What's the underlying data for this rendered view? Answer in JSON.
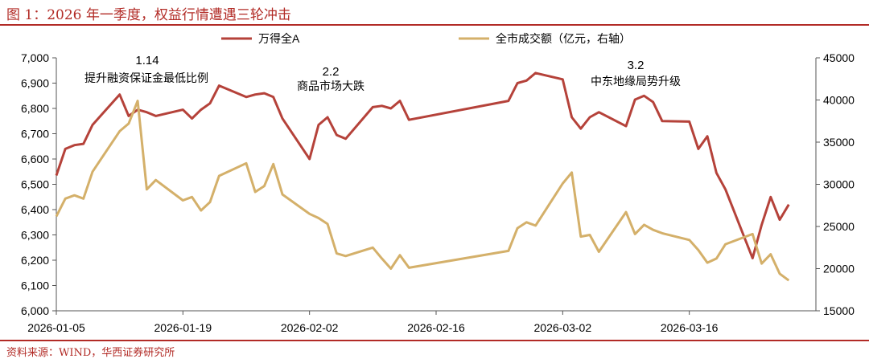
{
  "figure": {
    "title": "图 1：2026 年一季度，权益行情遭遇三轮冲击",
    "source": "资料来源：WIND，华西证券研究所"
  },
  "colors": {
    "primary": "#b5423a",
    "secondary": "#d4b06a",
    "accent": "#b22b26"
  },
  "chart_data": {
    "type": "line",
    "x_axis": {
      "ticks": [
        "2026-01-05",
        "2026-01-19",
        "2026-02-02",
        "2026-02-16",
        "2026-03-02",
        "2026-03-16"
      ],
      "range": [
        "2026-01-05",
        "2026-03-30"
      ]
    },
    "y_left": {
      "ticks": [
        "6,000",
        "6,100",
        "6,200",
        "6,300",
        "6,400",
        "6,500",
        "6,600",
        "6,700",
        "6,800",
        "6,900",
        "7,000"
      ],
      "range": [
        6000,
        7000
      ]
    },
    "y_right": {
      "ticks": [
        "15000",
        "20000",
        "25000",
        "30000",
        "35000",
        "40000",
        "45000"
      ],
      "range": [
        15000,
        45000
      ]
    },
    "legend": {
      "placement": "top",
      "entries": [
        "万得全A",
        "全市成交额（亿元，右轴）"
      ]
    },
    "series": [
      {
        "name": "万得全A",
        "axis": "left",
        "points": [
          [
            "2026-01-05",
            6535
          ],
          [
            "2026-01-06",
            6640
          ],
          [
            "2026-01-07",
            6655
          ],
          [
            "2026-01-08",
            6660
          ],
          [
            "2026-01-09",
            6735
          ],
          [
            "2026-01-12",
            6855
          ],
          [
            "2026-01-13",
            6770
          ],
          [
            "2026-01-14",
            6795
          ],
          [
            "2026-01-15",
            6785
          ],
          [
            "2026-01-16",
            6770
          ],
          [
            "2026-01-19",
            6795
          ],
          [
            "2026-01-20",
            6760
          ],
          [
            "2026-01-21",
            6795
          ],
          [
            "2026-01-22",
            6820
          ],
          [
            "2026-01-23",
            6890
          ],
          [
            "2026-01-26",
            6845
          ],
          [
            "2026-01-27",
            6855
          ],
          [
            "2026-01-28",
            6860
          ],
          [
            "2026-01-29",
            6845
          ],
          [
            "2026-01-30",
            6760
          ],
          [
            "2026-02-02",
            6600
          ],
          [
            "2026-02-03",
            6735
          ],
          [
            "2026-02-04",
            6765
          ],
          [
            "2026-02-05",
            6695
          ],
          [
            "2026-02-06",
            6680
          ],
          [
            "2026-02-09",
            6805
          ],
          [
            "2026-02-10",
            6810
          ],
          [
            "2026-02-11",
            6800
          ],
          [
            "2026-02-12",
            6830
          ],
          [
            "2026-02-13",
            6755
          ],
          [
            "2026-02-24",
            6830
          ],
          [
            "2026-02-25",
            6900
          ],
          [
            "2026-02-26",
            6910
          ],
          [
            "2026-02-27",
            6940
          ],
          [
            "2026-03-02",
            6915
          ],
          [
            "2026-03-03",
            6765
          ],
          [
            "2026-03-04",
            6720
          ],
          [
            "2026-03-05",
            6765
          ],
          [
            "2026-03-06",
            6785
          ],
          [
            "2026-03-09",
            6730
          ],
          [
            "2026-03-10",
            6835
          ],
          [
            "2026-03-11",
            6850
          ],
          [
            "2026-03-12",
            6825
          ],
          [
            "2026-03-13",
            6750
          ],
          [
            "2026-03-16",
            6748
          ],
          [
            "2026-03-17",
            6640
          ],
          [
            "2026-03-18",
            6690
          ],
          [
            "2026-03-19",
            6545
          ],
          [
            "2026-03-20",
            6480
          ],
          [
            "2026-03-23",
            6208
          ],
          [
            "2026-03-24",
            6340
          ],
          [
            "2026-03-25",
            6450
          ],
          [
            "2026-03-26",
            6360
          ],
          [
            "2026-03-27",
            6420
          ]
        ]
      },
      {
        "name": "全市成交额（亿元，右轴）",
        "axis": "right",
        "points": [
          [
            "2026-01-05",
            26200
          ],
          [
            "2026-01-06",
            28300
          ],
          [
            "2026-01-07",
            28700
          ],
          [
            "2026-01-08",
            28300
          ],
          [
            "2026-01-09",
            31500
          ],
          [
            "2026-01-12",
            36300
          ],
          [
            "2026-01-13",
            37200
          ],
          [
            "2026-01-14",
            39900
          ],
          [
            "2026-01-15",
            29400
          ],
          [
            "2026-01-16",
            30500
          ],
          [
            "2026-01-19",
            28100
          ],
          [
            "2026-01-20",
            28500
          ],
          [
            "2026-01-21",
            26900
          ],
          [
            "2026-01-22",
            27900
          ],
          [
            "2026-01-23",
            31000
          ],
          [
            "2026-01-26",
            32500
          ],
          [
            "2026-01-27",
            29100
          ],
          [
            "2026-01-28",
            29800
          ],
          [
            "2026-01-29",
            32400
          ],
          [
            "2026-01-30",
            28800
          ],
          [
            "2026-02-02",
            26500
          ],
          [
            "2026-02-03",
            26000
          ],
          [
            "2026-02-04",
            25300
          ],
          [
            "2026-02-05",
            21800
          ],
          [
            "2026-02-06",
            21500
          ],
          [
            "2026-02-09",
            22500
          ],
          [
            "2026-02-10",
            21200
          ],
          [
            "2026-02-11",
            20000
          ],
          [
            "2026-02-12",
            21600
          ],
          [
            "2026-02-13",
            20100
          ],
          [
            "2026-02-24",
            22100
          ],
          [
            "2026-02-25",
            24800
          ],
          [
            "2026-02-26",
            25500
          ],
          [
            "2026-02-27",
            25100
          ],
          [
            "2026-03-02",
            30100
          ],
          [
            "2026-03-03",
            31400
          ],
          [
            "2026-03-04",
            23800
          ],
          [
            "2026-03-05",
            24000
          ],
          [
            "2026-03-06",
            22000
          ],
          [
            "2026-03-09",
            26700
          ],
          [
            "2026-03-10",
            24100
          ],
          [
            "2026-03-11",
            25200
          ],
          [
            "2026-03-12",
            24600
          ],
          [
            "2026-03-13",
            24200
          ],
          [
            "2026-03-16",
            23400
          ],
          [
            "2026-03-17",
            22200
          ],
          [
            "2026-03-18",
            20700
          ],
          [
            "2026-03-19",
            21200
          ],
          [
            "2026-03-20",
            22900
          ],
          [
            "2026-03-23",
            24100
          ],
          [
            "2026-03-24",
            20600
          ],
          [
            "2026-03-25",
            21700
          ],
          [
            "2026-03-26",
            19400
          ],
          [
            "2026-03-27",
            18600
          ]
        ]
      }
    ],
    "annotations": [
      {
        "id": "a1",
        "date_label": "1.14",
        "text": "提升融资保证金最低比例",
        "date": "2026-01-14"
      },
      {
        "id": "a2",
        "date_label": "2.2",
        "text": "商品市场大跌",
        "date": "2026-02-02"
      },
      {
        "id": "a3",
        "date_label": "3.2",
        "text": "中东地缘局势升级",
        "date": "2026-03-02"
      }
    ],
    "grid": false
  }
}
